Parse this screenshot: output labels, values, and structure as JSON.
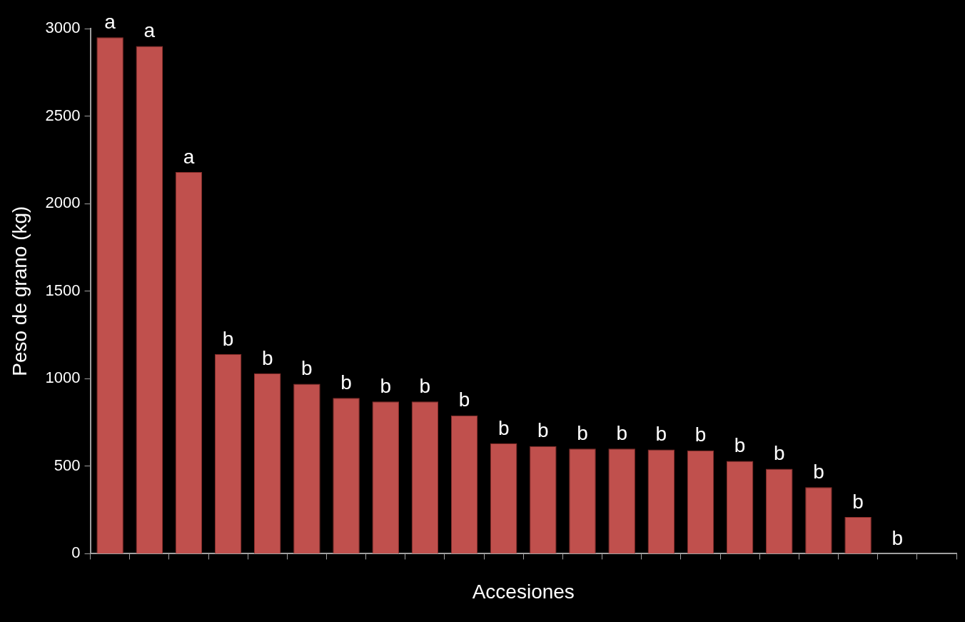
{
  "chart_data": {
    "type": "bar",
    "x_label": "Accesiones",
    "y_label": "Peso de grano (kg)",
    "categories": [
      null,
      null,
      null,
      null,
      null,
      null,
      null,
      null,
      null,
      null,
      null,
      null,
      null,
      null,
      null,
      null,
      null,
      null,
      null,
      null,
      null,
      null
    ],
    "values": [
      2950,
      2900,
      2180,
      1140,
      1030,
      970,
      890,
      870,
      870,
      790,
      630,
      615,
      600,
      600,
      595,
      590,
      530,
      485,
      380,
      210,
      0,
      0
    ],
    "letters": [
      "a",
      "a",
      "a",
      "b",
      "b",
      "b",
      "b",
      "b",
      "b",
      "b",
      "b",
      "b",
      "b",
      "b",
      "b",
      "b",
      "b",
      "b",
      "b",
      "b",
      "b",
      null
    ],
    "color": "#c0504d",
    "ylim": [
      0,
      3000
    ],
    "yticks": [
      0,
      500,
      1000,
      1500,
      2000,
      2500,
      3000
    ],
    "grid": false,
    "tick_labels": "y"
  }
}
